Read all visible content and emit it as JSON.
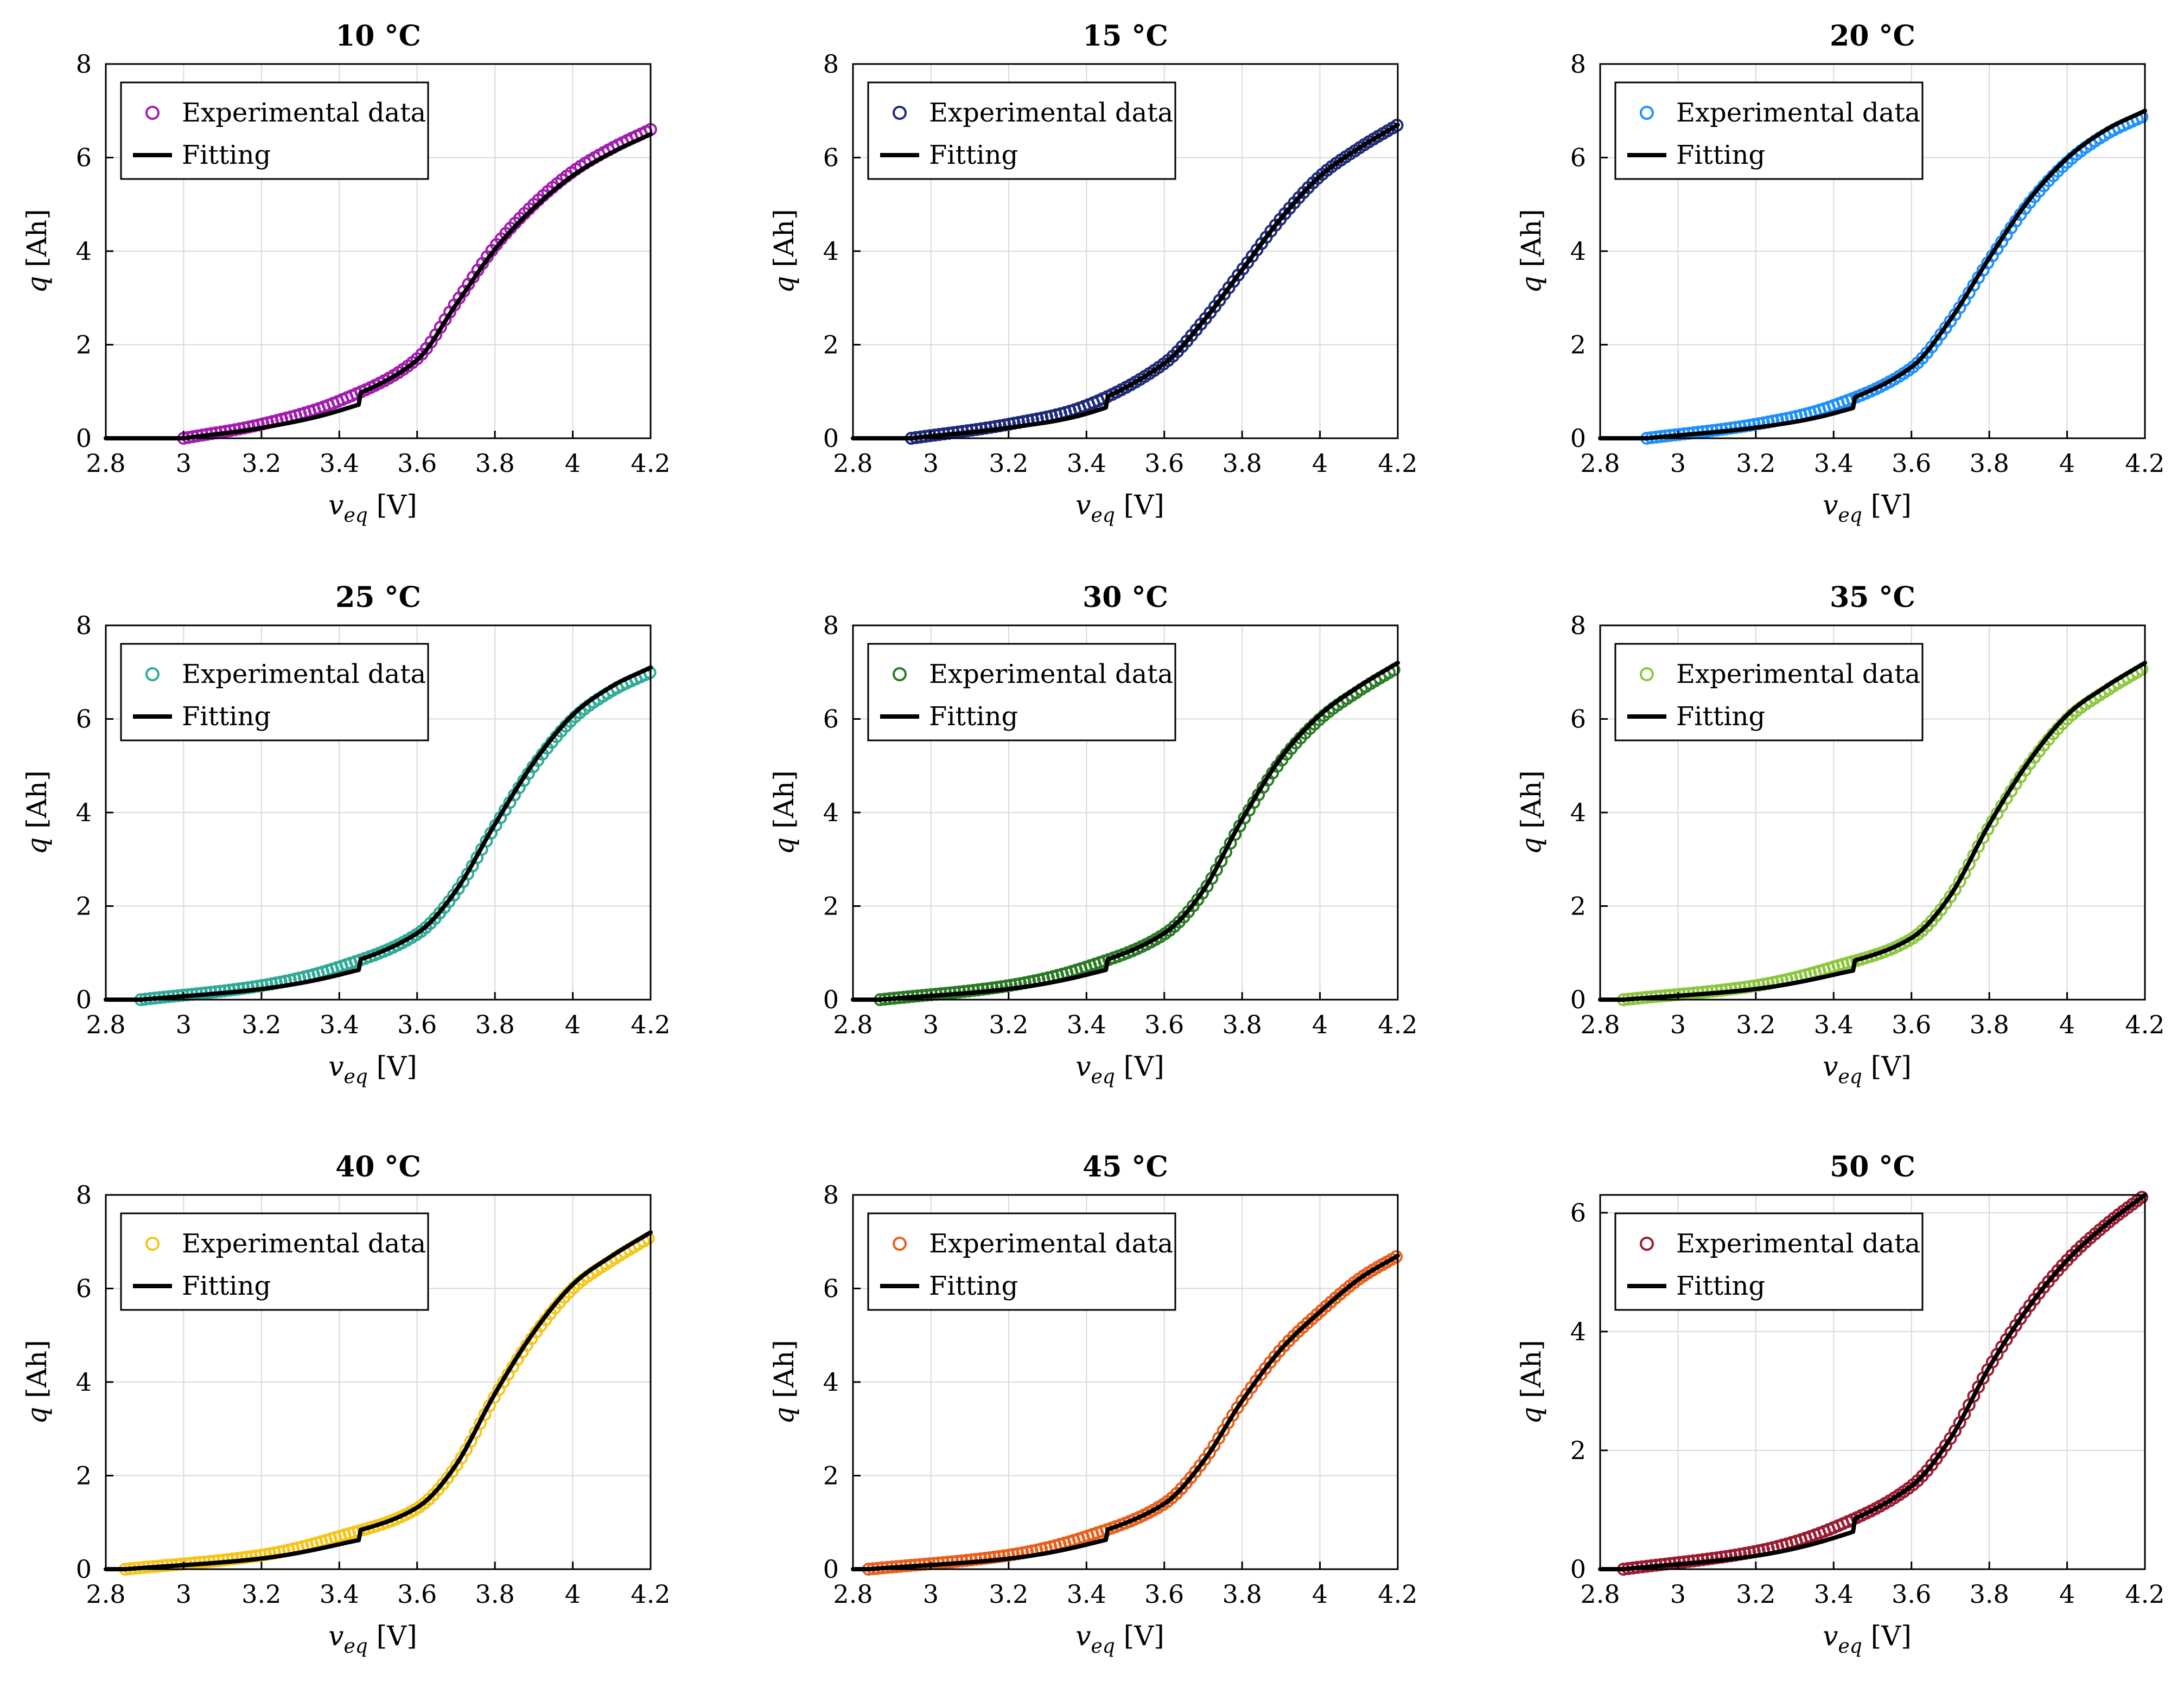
{
  "chart_data": [
    {
      "type": "scatter",
      "title": "10 °C",
      "color": "#a21caf",
      "xlabel": "v_eq [V]",
      "ylabel": "q [Ah]",
      "xlim": [
        2.8,
        4.2
      ],
      "ylim": [
        0,
        8
      ],
      "xticks": [
        "2.8",
        "3",
        "3.2",
        "3.4",
        "3.6",
        "3.8",
        "4",
        "4.2"
      ],
      "yticks": [
        "0",
        "2",
        "4",
        "6",
        "8"
      ],
      "legend": [
        "Experimental data",
        "Fitting"
      ],
      "x_start": 3.0,
      "q_max": 6.6,
      "fit_q_max": 6.5,
      "x": [
        3.0,
        3.2,
        3.4,
        3.6,
        3.7,
        3.8,
        3.9,
        4.0,
        4.1,
        4.2
      ],
      "y": [
        0.0,
        0.3,
        0.8,
        1.7,
        2.9,
        4.1,
        5.0,
        5.7,
        6.2,
        6.6
      ]
    },
    {
      "type": "scatter",
      "title": "15 °C",
      "color": "#1e2a78",
      "xlabel": "v_eq [V]",
      "ylabel": "q [Ah]",
      "xlim": [
        2.8,
        4.2
      ],
      "ylim": [
        0,
        8
      ],
      "xticks": [
        "2.8",
        "3",
        "3.2",
        "3.4",
        "3.6",
        "3.8",
        "4",
        "4.2"
      ],
      "yticks": [
        "0",
        "2",
        "4",
        "6",
        "8"
      ],
      "legend": [
        "Experimental data",
        "Fitting"
      ],
      "x_start": 2.95,
      "q_max": 6.7,
      "fit_q_max": 6.7,
      "x": [
        2.95,
        3.2,
        3.4,
        3.6,
        3.7,
        3.8,
        3.9,
        4.0,
        4.1,
        4.2
      ],
      "y": [
        0.0,
        0.3,
        0.7,
        1.6,
        2.5,
        3.6,
        4.7,
        5.6,
        6.2,
        6.7
      ]
    },
    {
      "type": "scatter",
      "title": "20 °C",
      "color": "#1e90ff",
      "xlabel": "v_eq [V]",
      "ylabel": "q [Ah]",
      "xlim": [
        2.8,
        4.2
      ],
      "ylim": [
        0,
        8
      ],
      "xticks": [
        "2.8",
        "3",
        "3.2",
        "3.4",
        "3.6",
        "3.8",
        "4",
        "4.2"
      ],
      "yticks": [
        "0",
        "2",
        "4",
        "6",
        "8"
      ],
      "legend": [
        "Experimental data",
        "Fitting"
      ],
      "x_start": 2.92,
      "q_max": 6.9,
      "fit_q_max": 7.0,
      "x": [
        2.92,
        3.2,
        3.4,
        3.6,
        3.7,
        3.8,
        3.9,
        4.0,
        4.1,
        4.2
      ],
      "y": [
        0.0,
        0.3,
        0.7,
        1.5,
        2.5,
        3.8,
        5.0,
        5.9,
        6.5,
        6.9
      ]
    },
    {
      "type": "scatter",
      "title": "25 °C",
      "color": "#2eaa96",
      "xlabel": "v_eq [V]",
      "ylabel": "q [Ah]",
      "xlim": [
        2.8,
        4.2
      ],
      "ylim": [
        0,
        8
      ],
      "xticks": [
        "2.8",
        "3",
        "3.2",
        "3.4",
        "3.6",
        "3.8",
        "4",
        "4.2"
      ],
      "yticks": [
        "0",
        "2",
        "4",
        "6",
        "8"
      ],
      "legend": [
        "Experimental data",
        "Fitting"
      ],
      "x_start": 2.89,
      "q_max": 7.0,
      "fit_q_max": 7.1,
      "x": [
        2.89,
        3.2,
        3.4,
        3.6,
        3.7,
        3.8,
        3.9,
        4.0,
        4.1,
        4.2
      ],
      "y": [
        0.0,
        0.3,
        0.7,
        1.4,
        2.3,
        3.7,
        5.0,
        6.0,
        6.6,
        7.0
      ]
    },
    {
      "type": "scatter",
      "title": "30 °C",
      "color": "#2a7a25",
      "xlabel": "v_eq [V]",
      "ylabel": "q [Ah]",
      "xlim": [
        2.8,
        4.2
      ],
      "ylim": [
        0,
        8
      ],
      "xticks": [
        "2.8",
        "3",
        "3.2",
        "3.4",
        "3.6",
        "3.8",
        "4",
        "4.2"
      ],
      "yticks": [
        "0",
        "2",
        "4",
        "6",
        "8"
      ],
      "legend": [
        "Experimental data",
        "Fitting"
      ],
      "x_start": 2.87,
      "q_max": 7.1,
      "fit_q_max": 7.2,
      "x": [
        2.87,
        3.2,
        3.4,
        3.6,
        3.7,
        3.8,
        3.9,
        4.0,
        4.1,
        4.2
      ],
      "y": [
        0.0,
        0.3,
        0.7,
        1.4,
        2.3,
        3.8,
        5.1,
        6.0,
        6.6,
        7.1
      ]
    },
    {
      "type": "scatter",
      "title": "35 °C",
      "color": "#8cc63f",
      "xlabel": "v_eq [V]",
      "ylabel": "q [Ah]",
      "xlim": [
        2.8,
        4.2
      ],
      "ylim": [
        0,
        8
      ],
      "xticks": [
        "2.8",
        "3",
        "3.2",
        "3.4",
        "3.6",
        "3.8",
        "4",
        "4.2"
      ],
      "yticks": [
        "0",
        "2",
        "4",
        "6",
        "8"
      ],
      "legend": [
        "Experimental data",
        "Fitting"
      ],
      "x_start": 2.86,
      "q_max": 7.1,
      "fit_q_max": 7.2,
      "x": [
        2.86,
        3.2,
        3.4,
        3.6,
        3.7,
        3.8,
        3.9,
        4.0,
        4.1,
        4.2
      ],
      "y": [
        0.0,
        0.3,
        0.7,
        1.3,
        2.2,
        3.7,
        5.0,
        6.0,
        6.6,
        7.1
      ]
    },
    {
      "type": "scatter",
      "title": "40 °C",
      "color": "#f5c518",
      "xlabel": "v_eq [V]",
      "ylabel": "q [Ah]",
      "xlim": [
        2.8,
        4.2
      ],
      "ylim": [
        0,
        8
      ],
      "xticks": [
        "2.8",
        "3",
        "3.2",
        "3.4",
        "3.6",
        "3.8",
        "4",
        "4.2"
      ],
      "yticks": [
        "0",
        "2",
        "4",
        "6",
        "8"
      ],
      "legend": [
        "Experimental data",
        "Fitting"
      ],
      "x_start": 2.85,
      "q_max": 7.1,
      "fit_q_max": 7.2,
      "x": [
        2.85,
        3.2,
        3.4,
        3.6,
        3.7,
        3.8,
        3.9,
        4.0,
        4.1,
        4.2
      ],
      "y": [
        0.0,
        0.3,
        0.7,
        1.3,
        2.2,
        3.7,
        5.0,
        6.0,
        6.6,
        7.1
      ]
    },
    {
      "type": "scatter",
      "title": "45 °C",
      "color": "#e8601c",
      "xlabel": "v_eq [V]",
      "ylabel": "q [Ah]",
      "xlim": [
        2.8,
        4.2
      ],
      "ylim": [
        0,
        8
      ],
      "xticks": [
        "2.8",
        "3",
        "3.2",
        "3.4",
        "3.6",
        "3.8",
        "4",
        "4.2"
      ],
      "yticks": [
        "0",
        "2",
        "4",
        "6",
        "8"
      ],
      "legend": [
        "Experimental data",
        "Fitting"
      ],
      "x_start": 2.84,
      "q_max": 6.7,
      "fit_q_max": 6.7,
      "x": [
        2.84,
        3.2,
        3.4,
        3.6,
        3.7,
        3.8,
        3.9,
        4.0,
        4.1,
        4.2
      ],
      "y": [
        0.0,
        0.3,
        0.7,
        1.4,
        2.3,
        3.6,
        4.7,
        5.5,
        6.2,
        6.7
      ]
    },
    {
      "type": "scatter",
      "title": "50 °C",
      "color": "#9b1c31",
      "xlabel": "v_eq [V]",
      "ylabel": "q [Ah]",
      "xlim": [
        2.8,
        4.2
      ],
      "ylim": [
        0,
        6.3
      ],
      "xticks": [
        "2.8",
        "3",
        "3.2",
        "3.4",
        "3.6",
        "3.8",
        "4",
        "4.2"
      ],
      "yticks": [
        "0",
        "2",
        "4",
        "6"
      ],
      "legend": [
        "Experimental data",
        "Fitting"
      ],
      "x_start": 2.86,
      "q_max": 6.3,
      "fit_q_max": 6.3,
      "x": [
        2.86,
        3.2,
        3.4,
        3.6,
        3.7,
        3.8,
        3.9,
        4.0,
        4.1,
        4.2
      ],
      "y": [
        0.0,
        0.3,
        0.7,
        1.4,
        2.2,
        3.4,
        4.4,
        5.2,
        5.8,
        6.3
      ]
    }
  ]
}
